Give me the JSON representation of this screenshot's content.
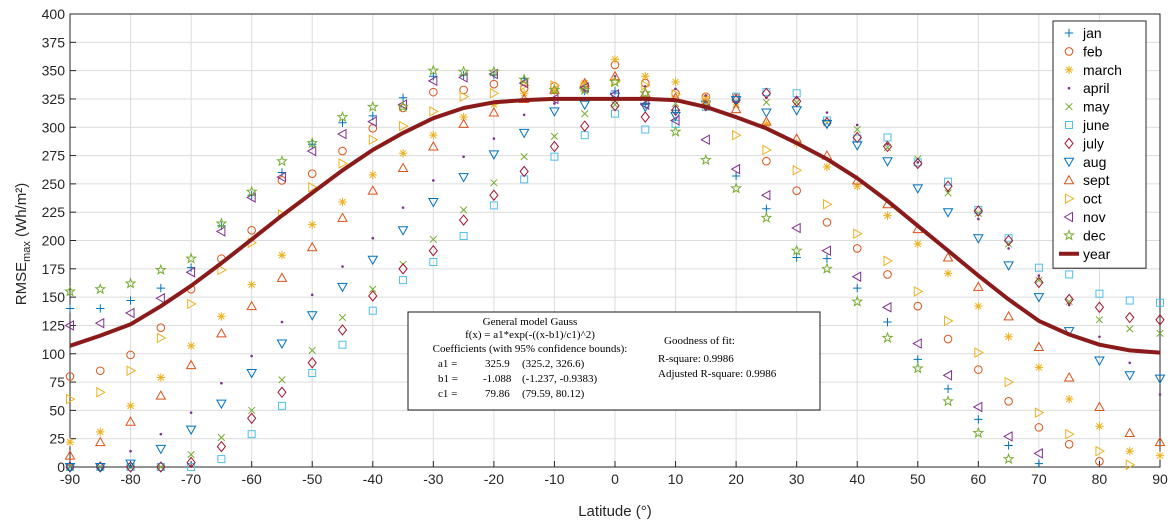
{
  "chart_data": {
    "type": "scatter",
    "xlabel": "Latitude (°)",
    "ylabel": {
      "main": "RMSE",
      "sub": "max",
      "unit": " (Wh/m²)"
    },
    "xlim": [
      -90,
      90
    ],
    "ylim": [
      0,
      400
    ],
    "xticks": [
      -90,
      -80,
      -70,
      -60,
      -50,
      -40,
      -30,
      -20,
      -10,
      0,
      10,
      20,
      30,
      40,
      50,
      60,
      70,
      80,
      90
    ],
    "yticks": [
      0,
      25,
      50,
      75,
      100,
      125,
      150,
      175,
      200,
      225,
      250,
      275,
      300,
      325,
      350,
      375,
      400
    ],
    "grid": true,
    "legend_position": "top-right",
    "x": [
      -90,
      -85,
      -80,
      -75,
      -70,
      -65,
      -60,
      -55,
      -50,
      -45,
      -40,
      -35,
      -30,
      -25,
      -20,
      -15,
      -10,
      -5,
      0,
      5,
      10,
      15,
      20,
      25,
      30,
      35,
      40,
      45,
      50,
      55,
      60,
      65,
      70,
      75,
      80,
      85,
      90
    ],
    "series": [
      {
        "name": "jan",
        "color": "#0072BD",
        "marker": "plus",
        "values": [
          140,
          140,
          147,
          158,
          176,
          213,
          240,
          260,
          285,
          304,
          310,
          326,
          345,
          346,
          346,
          343,
          332,
          332,
          332,
          320,
          315,
          320,
          257,
          228,
          185,
          184,
          158,
          128,
          95,
          69,
          42,
          19,
          3,
          null,
          null,
          null,
          null
        ]
      },
      {
        "name": "feb",
        "color": "#D95319",
        "marker": "circle",
        "values": [
          80,
          85,
          99,
          123,
          157,
          184,
          209,
          253,
          259,
          279,
          299,
          317,
          331,
          333,
          338,
          334,
          336,
          337,
          355,
          339,
          330,
          327,
          326,
          270,
          244,
          216,
          193,
          170,
          142,
          113,
          86,
          58,
          35,
          20,
          5,
          null,
          null
        ]
      },
      {
        "name": "march",
        "color": "#EDB120",
        "marker": "star",
        "values": [
          22,
          31,
          54,
          79,
          107,
          133,
          161,
          187,
          214,
          234,
          258,
          277,
          293,
          309,
          320,
          330,
          332,
          339,
          360,
          345,
          340,
          327,
          322,
          303,
          286,
          265,
          248,
          222,
          197,
          171,
          142,
          115,
          88,
          60,
          36,
          14,
          10
        ]
      },
      {
        "name": "april",
        "color": "#7E2F8E",
        "marker": "dot",
        "values": [
          0,
          0,
          14,
          29,
          48,
          74,
          98,
          128,
          152,
          177,
          202,
          229,
          253,
          274,
          290,
          311,
          321,
          332,
          345,
          336,
          334,
          328,
          322,
          326,
          326,
          313,
          302,
          285,
          269,
          243,
          219,
          193,
          169,
          143,
          115,
          92,
          64
        ]
      },
      {
        "name": "may",
        "color": "#77AC30",
        "marker": "x",
        "values": [
          0,
          0,
          0,
          0,
          11,
          26,
          50,
          77,
          103,
          132,
          157,
          179,
          201,
          227,
          251,
          274,
          292,
          312,
          320,
          323,
          321,
          321,
          320,
          322,
          322,
          304,
          298,
          282,
          272,
          242,
          224,
          197,
          165,
          146,
          130,
          122,
          118
        ]
      },
      {
        "name": "june",
        "color": "#4DBEEE",
        "marker": "square",
        "values": [
          0,
          0,
          0,
          0,
          0,
          7,
          29,
          54,
          83,
          108,
          138,
          165,
          181,
          204,
          231,
          254,
          274,
          293,
          312,
          298,
          303,
          318,
          327,
          331,
          330,
          306,
          290,
          291,
          269,
          252,
          227,
          202,
          176,
          170,
          153,
          147,
          145
        ]
      },
      {
        "name": "july",
        "color": "#A2142F",
        "marker": "diamond",
        "values": [
          0,
          0,
          0,
          0,
          4,
          18,
          43,
          66,
          92,
          121,
          151,
          175,
          191,
          218,
          240,
          261,
          283,
          301,
          319,
          309,
          315,
          319,
          324,
          330,
          323,
          304,
          291,
          283,
          268,
          248,
          226,
          200,
          163,
          148,
          141,
          132,
          130
        ]
      },
      {
        "name": "aug",
        "color": "#0072BD",
        "marker": "triangle-down",
        "values": [
          0,
          0,
          3,
          16,
          33,
          56,
          83,
          109,
          134,
          159,
          183,
          209,
          234,
          256,
          276,
          295,
          314,
          320,
          327,
          318,
          310,
          320,
          324,
          313,
          315,
          303,
          284,
          270,
          246,
          225,
          202,
          178,
          150,
          120,
          94,
          81,
          78
        ]
      },
      {
        "name": "sept",
        "color": "#D95319",
        "marker": "triangle-up",
        "values": [
          10,
          22,
          40,
          63,
          90,
          118,
          142,
          167,
          194,
          220,
          244,
          264,
          283,
          303,
          313,
          325,
          333,
          339,
          345,
          330,
          326,
          321,
          316,
          305,
          290,
          275,
          253,
          232,
          210,
          185,
          159,
          133,
          106,
          79,
          53,
          30,
          22
        ]
      },
      {
        "name": "oct",
        "color": "#EDB120",
        "marker": "triangle-right",
        "values": [
          60,
          66,
          85,
          114,
          144,
          174,
          198,
          223,
          247,
          268,
          289,
          301,
          314,
          327,
          330,
          337,
          337,
          336,
          340,
          337,
          329,
          322,
          293,
          280,
          262,
          232,
          206,
          182,
          155,
          129,
          101,
          75,
          48,
          29,
          14,
          2,
          null
        ]
      },
      {
        "name": "nov",
        "color": "#7E2F8E",
        "marker": "triangle-left",
        "values": [
          125,
          127,
          136,
          149,
          172,
          208,
          238,
          256,
          279,
          294,
          305,
          320,
          341,
          344,
          347,
          339,
          325,
          335,
          329,
          320,
          306,
          289,
          263,
          240,
          211,
          191,
          168,
          141,
          109,
          81,
          53,
          27,
          12,
          null,
          null,
          null,
          null
        ]
      },
      {
        "name": "dec",
        "color": "#77AC30",
        "marker": "pentagram",
        "values": [
          155,
          157,
          162,
          174,
          184,
          215,
          243,
          270,
          286,
          309,
          318,
          318,
          350,
          349,
          349,
          342,
          333,
          333,
          340,
          330,
          296,
          271,
          246,
          220,
          191,
          175,
          146,
          114,
          87,
          58,
          30,
          7,
          null,
          null,
          null,
          null,
          null
        ]
      },
      {
        "name": "year",
        "color": "#8B1A1A",
        "marker": "line",
        "values": [
          107,
          116,
          126,
          142,
          160,
          180,
          201,
          222,
          242,
          262,
          280,
          295,
          308,
          317,
          322,
          324,
          325,
          325,
          325,
          325,
          324,
          318,
          309,
          299,
          286,
          272,
          255,
          235,
          213,
          191,
          169,
          148,
          129,
          117,
          108,
          103,
          101
        ]
      }
    ]
  },
  "fit_box": {
    "title": "General model Gauss",
    "formula": "f(x) = a1*exp(-((x-b1)/c1)^2)",
    "coef_header": "Coefficients (with 95% confidence bounds):",
    "coefficients": [
      {
        "name": "a1 =",
        "value": "325.9",
        "bounds": "(325.2, 326.6)"
      },
      {
        "name": "b1 =",
        "value": "-1.088",
        "bounds": "(-1.237, -0.9383)"
      },
      {
        "name": "c1 =",
        "value": "79.86",
        "bounds": "(79.59, 80.12)"
      }
    ],
    "gof_title": "Goodness of fit:",
    "rsquare": "R-square: 0.9986",
    "adj_rsquare": "Adjusted R-square: 0.9986"
  }
}
